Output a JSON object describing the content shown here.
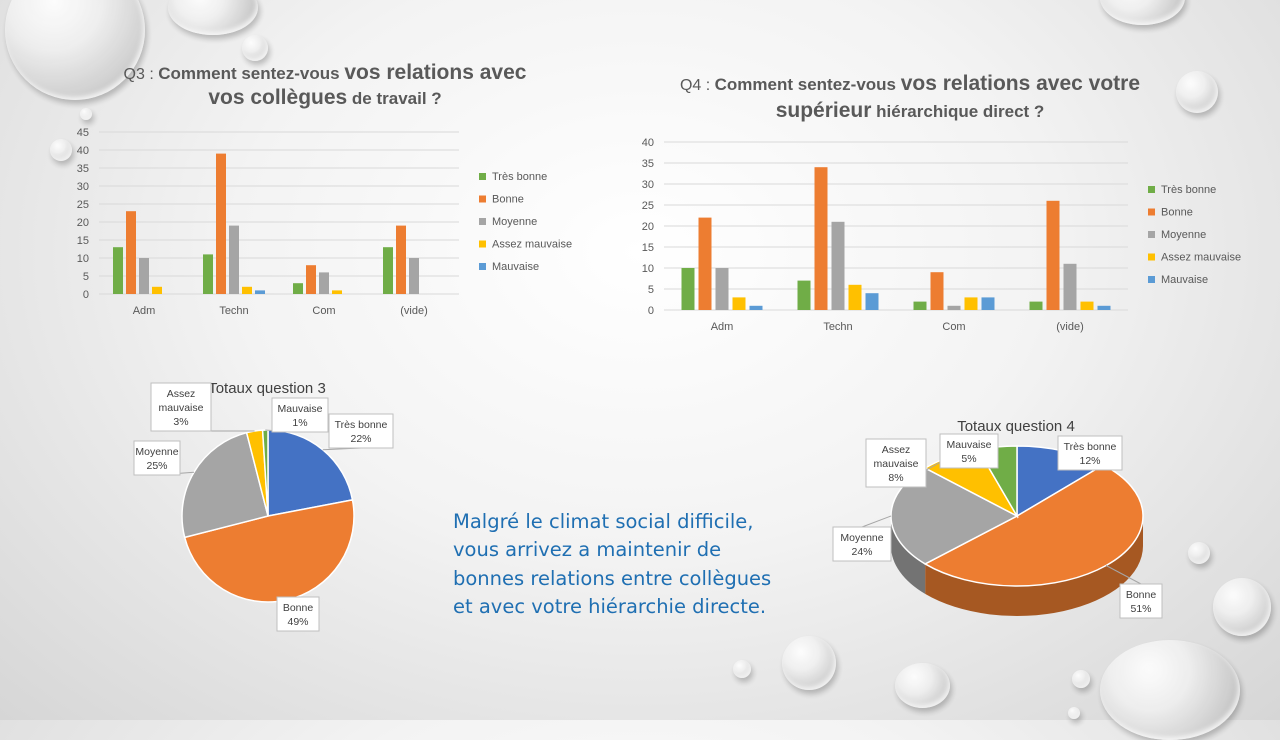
{
  "title_q3": {
    "prefix": "Q3 : ",
    "part1": "Comment sentez-vous ",
    "part2": "vos relations avec",
    "part3": "vos collègues",
    "part4": " de travail ?"
  },
  "title_q4": {
    "prefix": "Q4 : ",
    "part1": "Comment sentez-vous ",
    "part2": "vos relations avec votre",
    "part3": "supérieur",
    "part4": " hiérarchique direct ?"
  },
  "message": [
    "Malgré le climat social difficile,",
    "vous arrivez a maintenir de",
    "bonnes relations entre collègues",
    "et avec votre hiérarchie directe."
  ],
  "colors": {
    "Très bonne": "#70ad47",
    "Bonne": "#ed7d31",
    "Moyenne": "#a5a5a5",
    "Assez mauvaise": "#ffc000",
    "Mauvaise": "#5b9bd5"
  },
  "pie_colors": {
    "Très bonne": "#4472c4",
    "Bonne": "#ed7d31",
    "Moyenne": "#a5a5a5",
    "Assez mauvaise": "#ffc000",
    "Mauvaise": "#70ad47"
  },
  "chart_data": [
    {
      "type": "bar",
      "title": "Q3 : Comment sentez-vous vos relations avec vos collègues de travail ?",
      "categories": [
        "Adm",
        "Techn",
        "Com",
        "(vide)"
      ],
      "ylim": [
        0,
        45
      ],
      "yticks": [
        0,
        5,
        10,
        15,
        20,
        25,
        30,
        35,
        40,
        45
      ],
      "grid": true,
      "legend": "right",
      "series": [
        {
          "name": "Très bonne",
          "values": [
            13,
            11,
            3,
            13
          ]
        },
        {
          "name": "Bonne",
          "values": [
            23,
            39,
            8,
            19
          ]
        },
        {
          "name": "Moyenne",
          "values": [
            10,
            19,
            6,
            10
          ]
        },
        {
          "name": "Assez mauvaise",
          "values": [
            2,
            2,
            1,
            0
          ]
        },
        {
          "name": "Mauvaise",
          "values": [
            0,
            1,
            0,
            0
          ]
        }
      ]
    },
    {
      "type": "bar",
      "title": "Q4 : Comment sentez-vous vos relations avec votre supérieur hiérarchique direct ?",
      "categories": [
        "Adm",
        "Techn",
        "Com",
        "(vide)"
      ],
      "ylim": [
        0,
        40
      ],
      "yticks": [
        0,
        5,
        10,
        15,
        20,
        25,
        30,
        35,
        40
      ],
      "grid": true,
      "legend": "right",
      "series": [
        {
          "name": "Très bonne",
          "values": [
            10,
            7,
            2,
            2
          ]
        },
        {
          "name": "Bonne",
          "values": [
            22,
            34,
            9,
            26
          ]
        },
        {
          "name": "Moyenne",
          "values": [
            10,
            21,
            1,
            11
          ]
        },
        {
          "name": "Assez mauvaise",
          "values": [
            3,
            6,
            3,
            2
          ]
        },
        {
          "name": "Mauvaise",
          "values": [
            1,
            4,
            3,
            1
          ]
        }
      ]
    },
    {
      "type": "pie",
      "title": "Totaux question 3",
      "slices": [
        {
          "label": "Très bonne",
          "value": 22,
          "text": "22%"
        },
        {
          "label": "Bonne",
          "value": 49,
          "text": "49%"
        },
        {
          "label": "Moyenne",
          "value": 25,
          "text": "25%"
        },
        {
          "label": "Assez mauvaise",
          "value": 3,
          "text": "3%"
        },
        {
          "label": "Mauvaise",
          "value": 1,
          "text": "1%"
        }
      ]
    },
    {
      "type": "pie",
      "title": "Totaux question 4",
      "slices": [
        {
          "label": "Très bonne",
          "value": 12,
          "text": "12%"
        },
        {
          "label": "Bonne",
          "value": 51,
          "text": "51%"
        },
        {
          "label": "Moyenne",
          "value": 24,
          "text": "24%"
        },
        {
          "label": "Assez mauvaise",
          "value": 8,
          "text": "8%"
        },
        {
          "label": "Mauvaise",
          "value": 5,
          "text": "5%"
        }
      ]
    }
  ]
}
